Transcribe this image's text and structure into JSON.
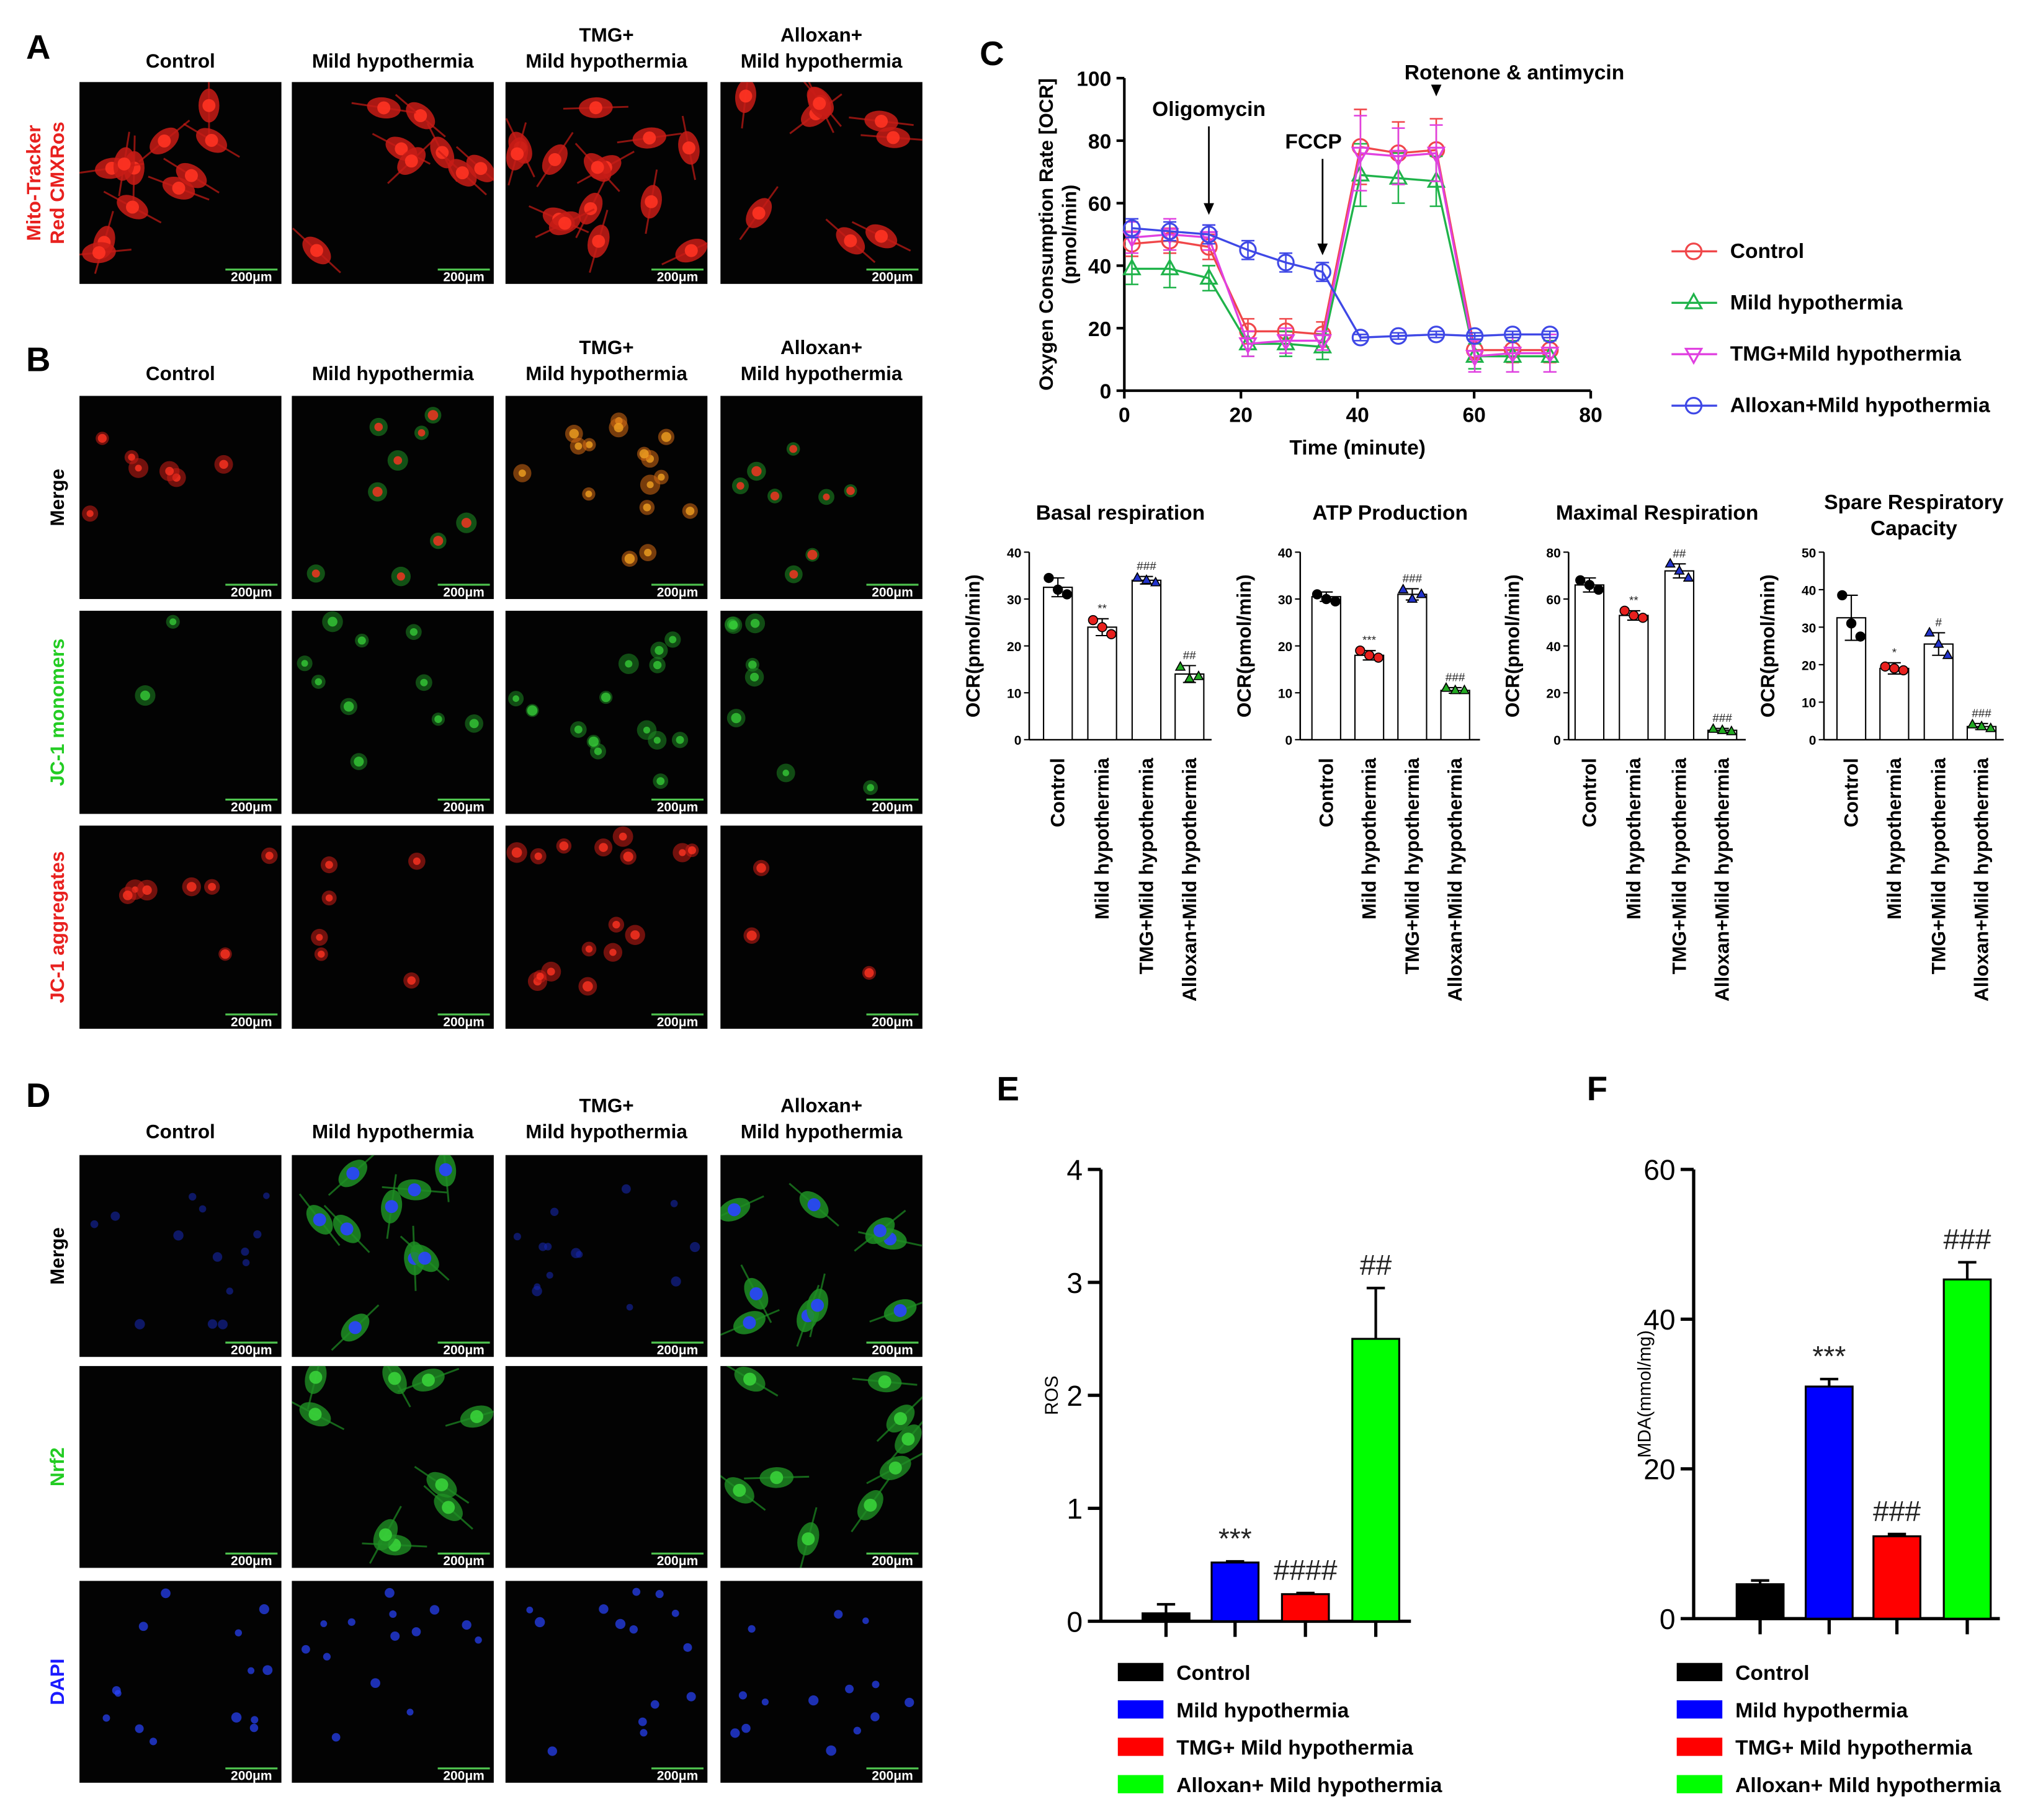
{
  "scale_bar": "200μm",
  "figure_panels": [
    {
      "label": "A",
      "columns": [
        [
          "Control"
        ],
        [
          "Mild hypothermia"
        ],
        [
          "TMG+",
          "Mild hypothermia"
        ],
        [
          "Alloxan+",
          "Mild hypothermia"
        ]
      ],
      "rows": [
        {
          "lines": [
            "Mito-Tracker",
            "Red CMXRos"
          ],
          "color": "#e8201e"
        }
      ]
    },
    {
      "label": "B",
      "columns": [
        [
          "Control"
        ],
        [
          "Mild hypothermia"
        ],
        [
          "TMG+",
          "Mild hypothermia"
        ],
        [
          "Alloxan+",
          "Mild hypothermia"
        ]
      ],
      "rows": [
        {
          "lines": [
            "Merge"
          ],
          "color": "#000000"
        },
        {
          "lines": [
            "JC-1 monomers"
          ],
          "color": "#22cc22"
        },
        {
          "lines": [
            "JC-1 aggregates"
          ],
          "color": "#e8201e"
        }
      ]
    },
    {
      "label": "D",
      "columns": [
        [
          "Control"
        ],
        [
          "Mild hypothermia"
        ],
        [
          "TMG+",
          "Mild hypothermia"
        ],
        [
          "Alloxan+",
          "Mild hypothermia"
        ]
      ],
      "rows": [
        {
          "lines": [
            "Merge"
          ],
          "color": "#000000"
        },
        {
          "lines": [
            "Nrf2"
          ],
          "color": "#22cc22"
        },
        {
          "lines": [
            "DAPI"
          ],
          "color": "#1a1aff"
        }
      ]
    }
  ],
  "chart_data": [
    {
      "type": "line",
      "label": "C",
      "y_label": [
        "Oxygen Consumption Rate [OCR]",
        "(pmol/min)"
      ],
      "x_label": "Time (minute)",
      "x": [
        1.3,
        7.8,
        14.5,
        21.2,
        27.7,
        34,
        40.5,
        47,
        53.5,
        60.1,
        66.6,
        73
      ],
      "xlim": [
        0,
        80
      ],
      "xticks": [
        0,
        20,
        40,
        60,
        80
      ],
      "ylim": [
        0,
        100
      ],
      "yticks": [
        0,
        20,
        40,
        60,
        80,
        100
      ],
      "series": [
        {
          "name": "Control",
          "color": "#f0474a",
          "marker": "circle",
          "values": [
            47,
            48,
            46,
            19,
            19,
            18,
            78,
            76,
            77,
            13,
            13,
            13
          ],
          "errors": [
            4,
            4,
            4,
            4,
            4,
            4,
            12,
            10,
            10,
            3,
            4,
            4
          ]
        },
        {
          "name": "Mild hypothermia",
          "color": "#1fb34a",
          "marker": "triangle-up",
          "values": [
            39,
            39,
            36,
            15,
            15,
            14,
            69,
            68,
            67,
            11,
            11,
            11
          ],
          "errors": [
            5,
            6,
            4,
            4,
            4,
            4,
            10,
            8,
            8,
            4,
            5,
            5
          ]
        },
        {
          "name": "TMG+Mild hypothermia",
          "color": "#e040e0",
          "marker": "triangle-down",
          "values": [
            49,
            50,
            49,
            15,
            16,
            16,
            76,
            75,
            76,
            11,
            12,
            12
          ],
          "errors": [
            5,
            5,
            4,
            4,
            4,
            3,
            12,
            9,
            9,
            5,
            6,
            6
          ]
        },
        {
          "name": "Alloxan+Mild hypothermia",
          "color": "#3f48e6",
          "marker": "circle",
          "values": [
            52,
            51,
            50,
            45,
            41,
            38,
            17,
            17.5,
            18,
            17.5,
            18,
            18
          ],
          "errors": [
            3,
            3,
            3,
            3,
            3,
            3,
            1,
            1,
            1,
            1,
            1,
            1
          ]
        }
      ],
      "annotations": [
        {
          "text": "Oligomycin",
          "x": 14.5
        },
        {
          "text": "FCCP",
          "x": 34
        },
        {
          "text": "Rotenone & antimycin",
          "x": 53.5
        }
      ]
    },
    {
      "type": "bar",
      "title": [
        "Basal respiration"
      ],
      "y_label": "OCR(pmol/min)",
      "legend": false,
      "bar_color": "#ffffff",
      "categories": [
        "Control",
        "Mild hypothermia",
        "TMG+Mild hypothermia",
        "Alloxan+Mild hypothermia"
      ],
      "values": [
        32.5,
        24,
        34,
        14
      ],
      "errors": [
        2,
        1.8,
        0.8,
        1.8
      ],
      "points": [
        [
          34.5,
          32,
          31
        ],
        [
          25.5,
          24,
          22.5
        ],
        [
          34.5,
          34,
          33.5
        ],
        [
          15.5,
          13,
          13.5
        ]
      ],
      "point_colors": [
        "#000000",
        "#e8201e",
        "#2233cc",
        "#22aa22"
      ],
      "point_markers": [
        "circle",
        "circle",
        "triangle-up",
        "triangle-up"
      ],
      "annotations": [
        null,
        "**",
        "###",
        "##"
      ],
      "ylim": [
        0,
        40
      ],
      "yticks": [
        0,
        10,
        20,
        30,
        40
      ]
    },
    {
      "type": "bar",
      "title": [
        "ATP Production"
      ],
      "y_label": "OCR(pmol/min)",
      "legend": false,
      "bar_color": "#ffffff",
      "categories": [
        "Control",
        "Mild hypothermia",
        "TMG+Mild hypothermia",
        "Alloxan+Mild hypothermia"
      ],
      "values": [
        30.5,
        18,
        31,
        10.5
      ],
      "errors": [
        1,
        1,
        1.2,
        0.6
      ],
      "points": [
        [
          31,
          30,
          29.5
        ],
        [
          19,
          18,
          17.5
        ],
        [
          32,
          30,
          31
        ],
        [
          11,
          10.5,
          10.5
        ]
      ],
      "point_colors": [
        "#000000",
        "#e8201e",
        "#2233cc",
        "#22aa22"
      ],
      "point_markers": [
        "circle",
        "circle",
        "triangle-up",
        "triangle-up"
      ],
      "annotations": [
        null,
        "***",
        "###",
        "###"
      ],
      "ylim": [
        0,
        40
      ],
      "yticks": [
        0,
        10,
        20,
        30,
        40
      ]
    },
    {
      "type": "bar",
      "title": [
        "Maximal Respiration"
      ],
      "y_label": "OCR(pmol/min)",
      "legend": false,
      "bar_color": "#ffffff",
      "categories": [
        "Control",
        "Mild hypothermia",
        "TMG+Mild hypothermia",
        "Alloxan+Mild hypothermia"
      ],
      "values": [
        66,
        53,
        72,
        4
      ],
      "errors": [
        3,
        2,
        3,
        0.8
      ],
      "points": [
        [
          68,
          66,
          64
        ],
        [
          55,
          53,
          52
        ],
        [
          75,
          72,
          69
        ],
        [
          4.5,
          4,
          3.5
        ]
      ],
      "point_colors": [
        "#000000",
        "#e8201e",
        "#2233cc",
        "#22aa22"
      ],
      "point_markers": [
        "circle",
        "circle",
        "triangle-up",
        "triangle-up"
      ],
      "annotations": [
        null,
        "**",
        "##",
        "###"
      ],
      "ylim": [
        0,
        80
      ],
      "yticks": [
        0,
        20,
        40,
        60,
        80
      ]
    },
    {
      "type": "bar",
      "title": [
        "Spare Respiratory",
        "Capacity"
      ],
      "y_label": "OCR(pmol/min)",
      "legend": false,
      "bar_color": "#ffffff",
      "categories": [
        "Control",
        "Mild hypothermia",
        "TMG+Mild hypothermia",
        "Alloxan+Mild hypothermia"
      ],
      "values": [
        32.5,
        19,
        25.5,
        3.5
      ],
      "errors": [
        6,
        1.5,
        3,
        0.8
      ],
      "points": [
        [
          38.5,
          31,
          27.5
        ],
        [
          19.5,
          19,
          18.5
        ],
        [
          28.5,
          25.5,
          22.5
        ],
        [
          4,
          3.5,
          3
        ]
      ],
      "point_colors": [
        "#000000",
        "#e8201e",
        "#2233cc",
        "#22aa22"
      ],
      "point_markers": [
        "circle",
        "circle",
        "triangle-up",
        "triangle-up"
      ],
      "annotations": [
        null,
        "*",
        "#",
        "###"
      ],
      "ylim": [
        0,
        50
      ],
      "yticks": [
        0,
        10,
        20,
        30,
        40,
        50
      ]
    },
    {
      "type": "bar",
      "label": "E",
      "y_label": "ROS",
      "legend": true,
      "categories": [
        "Control",
        "Mild hypothermia",
        "TMG+ Mild hypothermia",
        "Alloxan+ Mild hypothermia"
      ],
      "values": [
        0.07,
        0.52,
        0.24,
        2.5
      ],
      "errors": [
        0.08,
        0.01,
        0.01,
        0.45
      ],
      "colors": [
        "#000000",
        "#0000ff",
        "#ff0000",
        "#00ff00"
      ],
      "annotations": [
        null,
        "***",
        "####",
        "##"
      ],
      "ylim": [
        0,
        4
      ],
      "yticks": [
        0,
        1,
        2,
        3,
        4
      ]
    },
    {
      "type": "bar",
      "label": "F",
      "y_label": "MDA(mmol/mg)",
      "legend": true,
      "categories": [
        "Control",
        "Mild hypothermia",
        "TMG+ Mild hypothermia",
        "Alloxan+ Mild hypothermia"
      ],
      "values": [
        4.6,
        31,
        11,
        45.3
      ],
      "errors": [
        0.5,
        1,
        0.3,
        2.3
      ],
      "colors": [
        "#000000",
        "#0000ff",
        "#ff0000",
        "#00ff00"
      ],
      "annotations": [
        null,
        "***",
        "###",
        "###"
      ],
      "ylim": [
        0,
        60
      ],
      "yticks": [
        0,
        20,
        40,
        60
      ]
    }
  ]
}
